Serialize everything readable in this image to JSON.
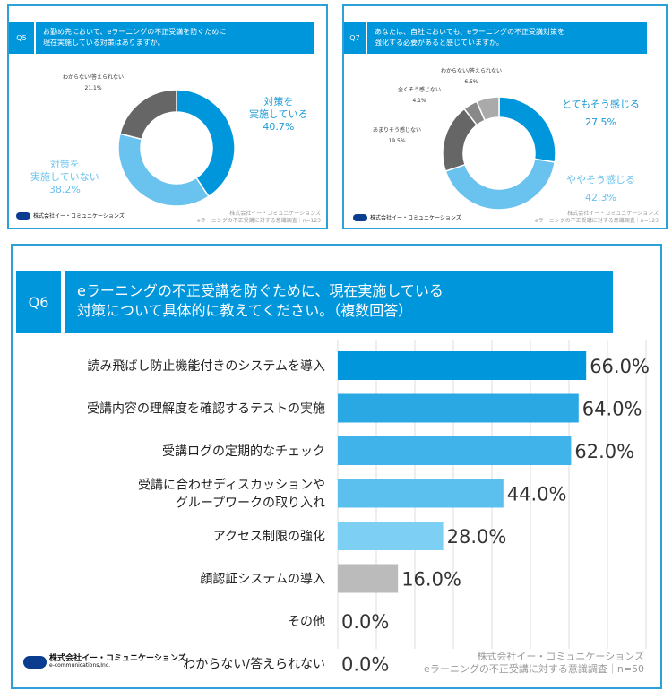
{
  "q5": {
    "id": "Q5",
    "title": [
      "お勤め先において、eラーニングの不正受講を防ぐために",
      "現在実施している対策はありますか。"
    ],
    "chart_data": {
      "type": "pie",
      "donut": true,
      "slices": [
        {
          "label": "対策を実施している",
          "lines": [
            "対策を",
            "実施している"
          ],
          "value": 40.7,
          "value_label": "40.7%",
          "color": "#0096dc"
        },
        {
          "label": "対策を実施していない",
          "lines": [
            "対策を",
            "実施していない"
          ],
          "value": 38.2,
          "value_label": "38.2%",
          "color": "#6ac2ee"
        },
        {
          "label": "わからない/答えられない",
          "lines": [
            "わからない/答えられない"
          ],
          "value": 21.1,
          "value_label": "21.1%",
          "color": "#666666"
        }
      ]
    },
    "source": [
      "株式会社イー・コミュニケーションズ",
      "eラーニングの不正受講に対する意識調査｜n=123"
    ]
  },
  "q7": {
    "id": "Q7",
    "title": [
      "あなたは、自社においても、eラーニングの不正受講対策を",
      "強化する必要があると感じていますか。"
    ],
    "chart_data": {
      "type": "pie",
      "donut": true,
      "slices": [
        {
          "label": "とてもそう感じる",
          "value": 27.5,
          "value_label": "27.5%",
          "color": "#0096dc"
        },
        {
          "label": "ややそう感じる",
          "value": 42.3,
          "value_label": "42.3%",
          "color": "#6ac2ee"
        },
        {
          "label": "あまりそう感じない",
          "value": 19.5,
          "value_label": "19.5%",
          "color": "#666666"
        },
        {
          "label": "全くそう感じない",
          "value": 4.1,
          "value_label": "4.1%",
          "color": "#888888"
        },
        {
          "label": "わからない/答えられない",
          "value": 6.5,
          "value_label": "6.5%",
          "color": "#aaaaaa"
        }
      ]
    },
    "source": [
      "株式会社イー・コミュニケーションズ",
      "eラーニングの不正受講に対する意識調査｜n=123"
    ]
  },
  "q6": {
    "id": "Q6",
    "title": [
      "eラーニングの不正受講を防ぐために、現在実施している",
      "対策について具体的に教えてください。（複数回答）"
    ],
    "chart_data": {
      "type": "bar",
      "orientation": "horizontal",
      "xlim": [
        0,
        100
      ],
      "grid": true,
      "categories": [
        [
          "読み飛ばし防止機能付きのシステムを導入"
        ],
        [
          "受講内容の理解度を確認するテストの実施"
        ],
        [
          "受講ログの定期的なチェック"
        ],
        [
          "受講に合わせディスカッションや",
          "グループワークの取り入れ"
        ],
        [
          "アクセス制限の強化"
        ],
        [
          "顔認証システムの導入"
        ],
        [
          "その他"
        ],
        [
          "わからない/答えられない"
        ]
      ],
      "values": [
        66.0,
        64.0,
        62.0,
        44.0,
        28.0,
        16.0,
        0.0,
        0.0
      ],
      "value_labels": [
        "66.0%",
        "64.0%",
        "62.0%",
        "44.0%",
        "28.0%",
        "16.0%",
        "0.0%",
        "0.0%"
      ],
      "colors": [
        "#0096dc",
        "#2aa8e4",
        "#40b3ea",
        "#5cc0ef",
        "#7dcff3",
        "#bbbbbb",
        "#bbbbbb",
        "#bbbbbb"
      ]
    },
    "source": [
      "株式会社イー・コミュニケーションズ",
      "eラーニングの不正受講に対する意識調査｜n=50"
    ]
  },
  "logo": {
    "name": "株式会社イー・コミュニケーションズ",
    "sub": "e-communications,Inc."
  }
}
